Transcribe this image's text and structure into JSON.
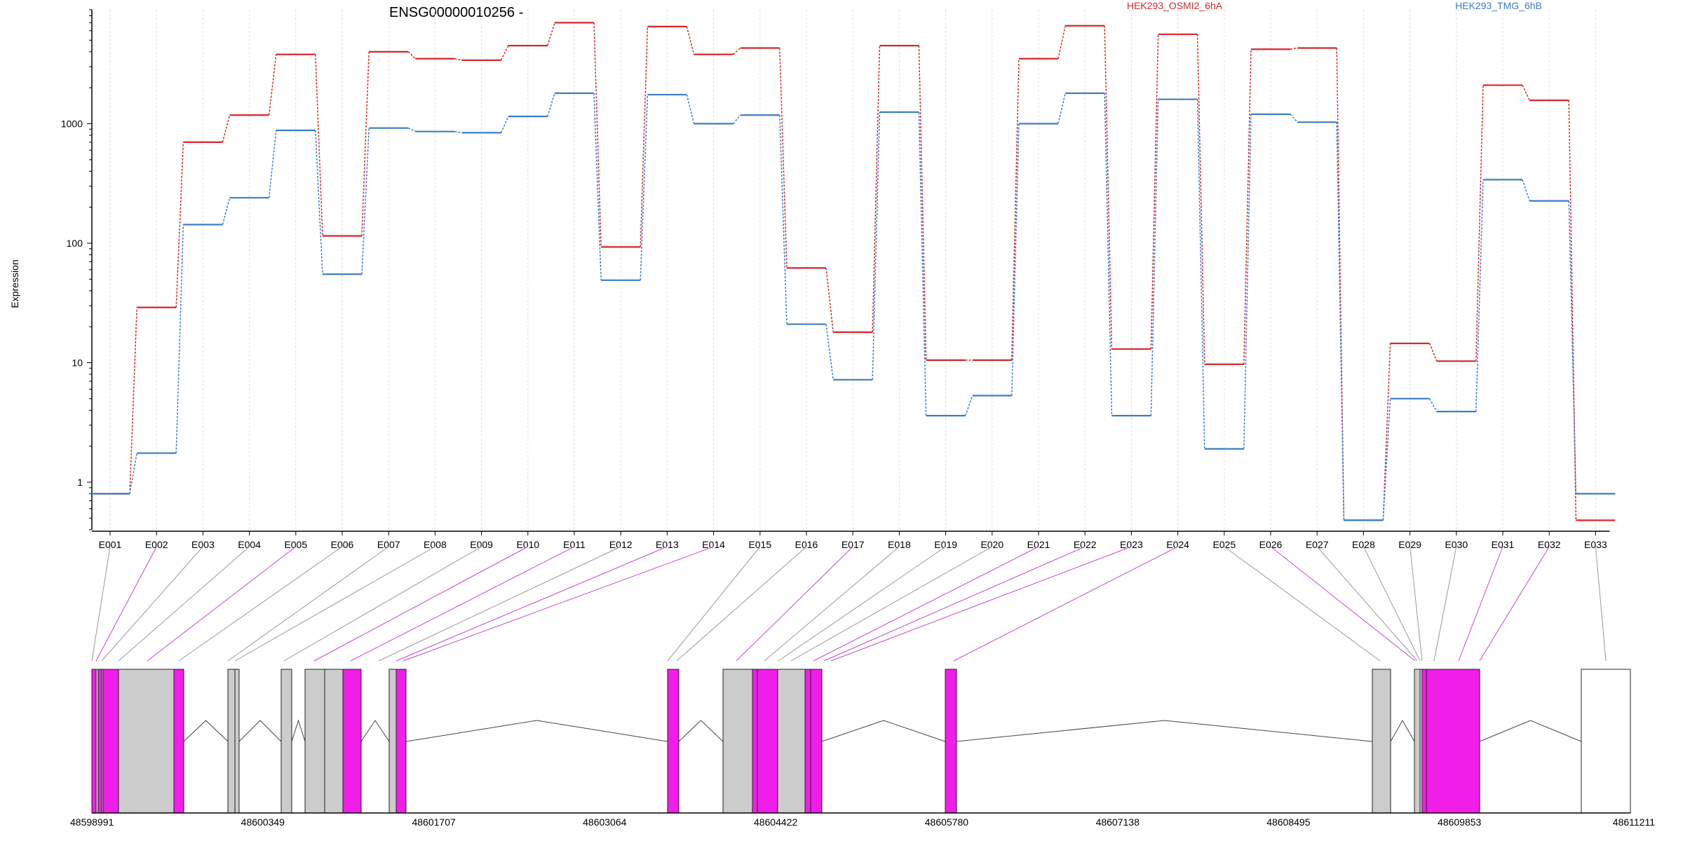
{
  "chart_data": {
    "type": "line",
    "title": "ENSG00000010256 -",
    "ylabel": "Expression",
    "yscale": "log",
    "ylim": [
      0.4,
      9000
    ],
    "yticks": [
      "1",
      "10",
      "100",
      "1000"
    ],
    "categories": [
      "E001",
      "E002",
      "E003",
      "E004",
      "E005",
      "E006",
      "E007",
      "E008",
      "E009",
      "E010",
      "E011",
      "E012",
      "E013",
      "E014",
      "E015",
      "E016",
      "E017",
      "E018",
      "E019",
      "E020",
      "E021",
      "E022",
      "E023",
      "E024",
      "E025",
      "E026",
      "E027",
      "E028",
      "E029",
      "E030",
      "E031",
      "E032",
      "E033"
    ],
    "series": [
      {
        "name": "HEK293_OSMI2_6hA",
        "color": "#d62728",
        "values": [
          0.8,
          29,
          700,
          1180,
          3800,
          115,
          4000,
          3500,
          3400,
          4500,
          7000,
          93,
          6500,
          3800,
          4300,
          62,
          18,
          4500,
          10.5,
          10.5,
          3500,
          6600,
          13,
          5600,
          9.7,
          4200,
          4300,
          0.48,
          14.5,
          10.3,
          2100,
          1570,
          0.48
        ]
      },
      {
        "name": "HEK293_TMG_6hB",
        "color": "#3b7dc4",
        "values": [
          0.8,
          1.75,
          143,
          240,
          880,
          55,
          920,
          860,
          840,
          1150,
          1800,
          49,
          1750,
          1000,
          1180,
          21,
          7.2,
          1250,
          3.6,
          5.3,
          1000,
          1800,
          3.6,
          1600,
          1.9,
          1200,
          1030,
          0.48,
          5,
          3.9,
          340,
          226,
          0.8
        ]
      }
    ],
    "grid": true,
    "legend": "top-right",
    "exon_map": {
      "ticks": [
        "48598991",
        "48600349",
        "48601707",
        "48603064",
        "48604422",
        "48605780",
        "48607138",
        "48608495",
        "48609853",
        "48611211"
      ],
      "exon_types": [
        "gray",
        "magenta",
        "gray",
        "gray",
        "magenta",
        "gray",
        "gray",
        "gray",
        "gray",
        "magenta",
        "magenta",
        "gray",
        "magenta",
        "magenta",
        "gray",
        "gray",
        "magenta",
        "gray",
        "gray",
        "gray",
        "magenta",
        "magenta",
        "magenta",
        "magenta",
        "gray",
        "magenta",
        "gray",
        "gray",
        "gray",
        "gray",
        "magenta",
        "magenta",
        "none"
      ],
      "colors": {
        "magenta": "#f01ee8",
        "gray": "#cccccc",
        "none": "#ffffff"
      }
    }
  }
}
